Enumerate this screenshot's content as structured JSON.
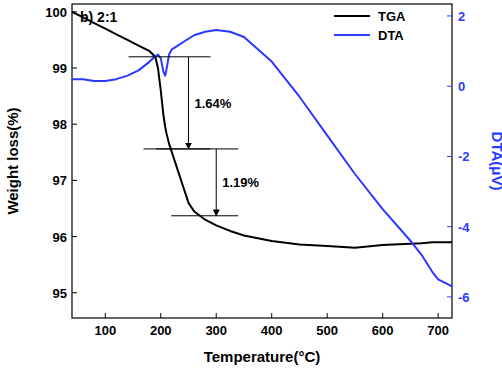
{
  "chart_data": {
    "type": "line",
    "title": "b) 2:1",
    "x_label": "Temperature(°C)",
    "y_label": "Weight loss(%)",
    "y2_label": "DTA(μV)",
    "x": [
      40,
      60,
      80,
      100,
      120,
      140,
      160,
      180,
      190,
      195,
      200,
      205,
      208,
      210,
      215,
      220,
      230,
      240,
      250,
      260,
      280,
      300,
      325,
      350,
      400,
      450,
      500,
      550,
      600,
      650,
      670,
      690,
      700,
      725
    ],
    "series": [
      {
        "name": "TGA",
        "color": "#000000",
        "values": [
          100,
          99.9,
          99.8,
          99.7,
          99.6,
          99.5,
          99.4,
          99.3,
          99.2,
          99.0,
          98.6,
          98.15,
          97.95,
          97.85,
          97.65,
          97.5,
          97.2,
          96.9,
          96.6,
          96.45,
          96.3,
          96.2,
          96.1,
          96.02,
          95.92,
          95.86,
          95.83,
          95.8,
          95.85,
          95.87,
          95.88,
          95.9,
          95.9,
          95.9
        ]
      },
      {
        "name": "DTA",
        "color": "#2b38ff",
        "axis": "y2",
        "values": [
          0.2,
          0.2,
          0.15,
          0.15,
          0.2,
          0.3,
          0.45,
          0.7,
          0.85,
          0.9,
          0.8,
          0.4,
          0.3,
          0.45,
          0.9,
          1.05,
          1.15,
          1.25,
          1.35,
          1.45,
          1.55,
          1.6,
          1.55,
          1.4,
          0.7,
          -0.3,
          -1.4,
          -2.5,
          -3.5,
          -4.4,
          -4.8,
          -5.3,
          -5.5,
          -5.7
        ]
      }
    ],
    "annotations": [
      {
        "text": "1.64%",
        "x": 250,
        "y_from": 99.2,
        "y_to": 97.56
      },
      {
        "text": "1.19%",
        "x": 300,
        "y_from": 97.56,
        "y_to": 96.37
      }
    ],
    "xlim": [
      40,
      725
    ],
    "xticks": [
      100,
      200,
      300,
      400,
      500,
      600,
      700
    ],
    "ylim": [
      94.55,
      100.14
    ],
    "yticks": [
      95,
      96,
      97,
      98,
      99,
      100
    ],
    "y2lim": [
      -6.6,
      2.34
    ],
    "y2ticks": [
      -6,
      -4,
      -2,
      0,
      2
    ],
    "legend": "upper right"
  }
}
